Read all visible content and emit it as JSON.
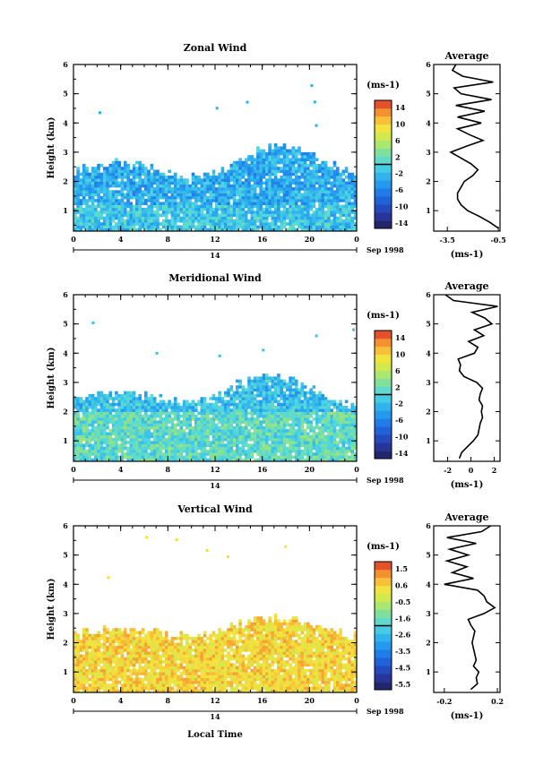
{
  "figure": {
    "x_axis_label": "Local Time",
    "date_label": "Sep 1998",
    "date_marker": "14"
  },
  "chart_data": [
    {
      "type": "heatmap",
      "title": "Zonal Wind",
      "ylabel": "Height (km)",
      "xlabel": "",
      "xlim": [
        0,
        24
      ],
      "ylim": [
        0.3,
        6
      ],
      "x_ticks": [
        "0",
        "4",
        "8",
        "12",
        "16",
        "20",
        "0"
      ],
      "y_ticks": [
        "1",
        "2",
        "3",
        "4",
        "5",
        "6"
      ],
      "colorbar": {
        "unit": "(ms-1)",
        "ticks": [
          "14",
          "10",
          "6",
          "2",
          "-2",
          "-6",
          "-10",
          "-14"
        ],
        "min": -16,
        "max": 16
      },
      "cloud": {
        "base": 2.0,
        "top": 2.6,
        "peak_hour": 17,
        "peak_extra": 0.6,
        "mean": -3.5,
        "spread": 3.5,
        "lower_mean": 2.0,
        "lower_height": 1.2
      },
      "profile": {
        "title": "Average",
        "xlabel": "(ms-1)",
        "x_ticks": [
          "-3.5",
          "-0.5"
        ],
        "x_tick_values": [
          -3.5,
          -0.5
        ],
        "xlim": [
          -4.3,
          -0.4
        ],
        "y": [
          0.4,
          0.6,
          0.8,
          1.0,
          1.2,
          1.4,
          1.6,
          1.8,
          2.0,
          2.2,
          2.4,
          2.6,
          2.8,
          3.0,
          3.2,
          3.4,
          3.6,
          3.8,
          4.0,
          4.2,
          4.4,
          4.6,
          4.8,
          5.0,
          5.2,
          5.4,
          5.6,
          5.8,
          6.0
        ],
        "x": [
          -0.5,
          -1.0,
          -1.6,
          -2.3,
          -2.7,
          -2.9,
          -2.9,
          -2.7,
          -2.5,
          -2.0,
          -1.7,
          -2.1,
          -2.7,
          -3.3,
          -2.4,
          -1.4,
          -2.2,
          -2.9,
          -1.5,
          -2.9,
          -1.3,
          -3.0,
          -0.9,
          -2.7,
          -3.1,
          -0.8,
          -2.6,
          -3.2,
          -3.0
        ]
      }
    },
    {
      "type": "heatmap",
      "title": "Meridional Wind",
      "ylabel": "Height (km)",
      "xlabel": "",
      "xlim": [
        0,
        24
      ],
      "ylim": [
        0.3,
        6
      ],
      "x_ticks": [
        "0",
        "4",
        "8",
        "12",
        "16",
        "20",
        "0"
      ],
      "y_ticks": [
        "1",
        "2",
        "3",
        "4",
        "5",
        "6"
      ],
      "colorbar": {
        "unit": "(ms-1)",
        "ticks": [
          "14",
          "10",
          "6",
          "2",
          "-2",
          "-6",
          "-10",
          "-14"
        ],
        "min": -16,
        "max": 16
      },
      "cloud": {
        "base": 2.0,
        "top": 2.6,
        "peak_hour": 15,
        "peak_extra": 0.7,
        "mean": -2.0,
        "spread": 3.5,
        "lower_mean": 3.0,
        "lower_height": 2.0
      },
      "profile": {
        "title": "Average",
        "xlabel": "(ms-1)",
        "x_ticks": [
          "-2",
          "0",
          "2"
        ],
        "x_tick_values": [
          -2,
          0,
          2
        ],
        "xlim": [
          -3.2,
          2.5
        ],
        "y": [
          0.4,
          0.6,
          0.8,
          1.0,
          1.2,
          1.4,
          1.6,
          1.8,
          2.0,
          2.2,
          2.4,
          2.6,
          2.8,
          3.0,
          3.2,
          3.4,
          3.6,
          3.8,
          4.0,
          4.2,
          4.4,
          4.6,
          4.8,
          5.0,
          5.2,
          5.4,
          5.6,
          5.8,
          6.0
        ],
        "x": [
          -1.0,
          -0.8,
          -0.3,
          0.2,
          0.6,
          0.7,
          0.8,
          1.0,
          0.9,
          1.0,
          0.7,
          0.8,
          1.0,
          0.5,
          -0.6,
          -1.0,
          -0.9,
          -1.1,
          0.3,
          0.6,
          -0.2,
          1.1,
          0.3,
          1.8,
          1.2,
          0.1,
          2.3,
          -1.5,
          -2.2
        ]
      }
    },
    {
      "type": "heatmap",
      "title": "Vertical Wind",
      "ylabel": "Height (km)",
      "xlabel": "Local Time",
      "xlim": [
        0,
        24
      ],
      "ylim": [
        0.3,
        6
      ],
      "x_ticks": [
        "0",
        "4",
        "8",
        "12",
        "16",
        "20",
        "0"
      ],
      "y_ticks": [
        "1",
        "2",
        "3",
        "4",
        "5",
        "6"
      ],
      "colorbar": {
        "unit": "(ms-1)",
        "ticks": [
          "1.5",
          "0.6",
          "-0.5",
          "-1.6",
          "-2.6",
          "-3.5",
          "-4.5",
          "-5.5"
        ],
        "min": -6.0,
        "max": 2.0
      },
      "cloud": {
        "base": 2.1,
        "top": 2.4,
        "peak_hour": 16,
        "peak_extra": 0.4,
        "mean": 0.45,
        "spread": 0.7,
        "lower_mean": 0.5,
        "lower_height": 0.0
      },
      "profile": {
        "title": "Average",
        "xlabel": "(ms-1)",
        "x_ticks": [
          "-0.2",
          "0.2"
        ],
        "x_tick_values": [
          -0.2,
          0.2
        ],
        "xlim": [
          -0.28,
          0.22
        ],
        "y": [
          0.4,
          0.6,
          0.8,
          1.0,
          1.2,
          1.4,
          1.6,
          1.8,
          2.0,
          2.2,
          2.4,
          2.6,
          2.8,
          3.0,
          3.2,
          3.4,
          3.6,
          3.8,
          4.0,
          4.2,
          4.4,
          4.6,
          4.8,
          5.0,
          5.2,
          5.4,
          5.6,
          5.8,
          6.0
        ],
        "x": [
          0.0,
          0.05,
          0.04,
          0.06,
          0.02,
          0.04,
          0.03,
          0.02,
          0.01,
          0.02,
          0.03,
          0.0,
          -0.02,
          0.1,
          0.18,
          0.12,
          0.1,
          0.05,
          -0.2,
          0.02,
          -0.14,
          -0.03,
          -0.18,
          -0.02,
          -0.16,
          0.04,
          -0.18,
          0.08,
          0.15
        ]
      }
    }
  ]
}
